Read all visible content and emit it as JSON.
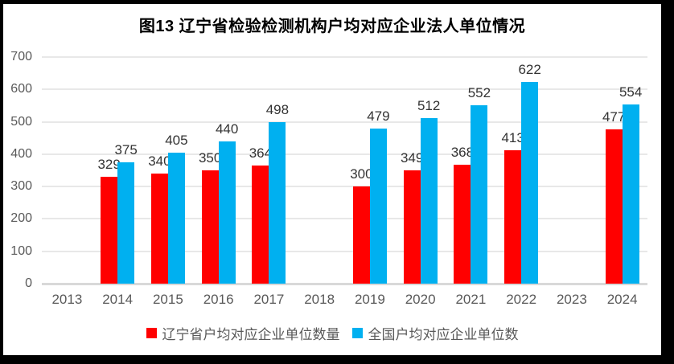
{
  "chart_data": {
    "type": "bar",
    "title": "图13 辽宁省检验检测机构户均对应企业法人单位情况",
    "categories": [
      "2013",
      "2014",
      "2015",
      "2016",
      "2017",
      "2018",
      "2019",
      "2020",
      "2021",
      "2022",
      "2023",
      "2024"
    ],
    "series": [
      {
        "name": "辽宁省户均对应企业单位数量",
        "color": "#FF0000",
        "values": [
          null,
          329,
          340,
          350,
          364,
          null,
          300,
          349,
          368,
          413,
          null,
          477
        ]
      },
      {
        "name": "全国户均对应企业单位数",
        "color": "#00B0F0",
        "values": [
          null,
          375,
          405,
          440,
          498,
          null,
          479,
          512,
          552,
          622,
          null,
          554
        ]
      }
    ],
    "ylim": [
      0,
      700
    ],
    "ytick_step": 100,
    "grid": true,
    "legend_position": "bottom",
    "data_labels": true,
    "style": {
      "axis_label_color": "#595959",
      "data_label_color": "#333333",
      "gridline_color": "#e8e8e8",
      "axis_line_color": "#d9d9d9",
      "frame_color": "#000000"
    }
  }
}
